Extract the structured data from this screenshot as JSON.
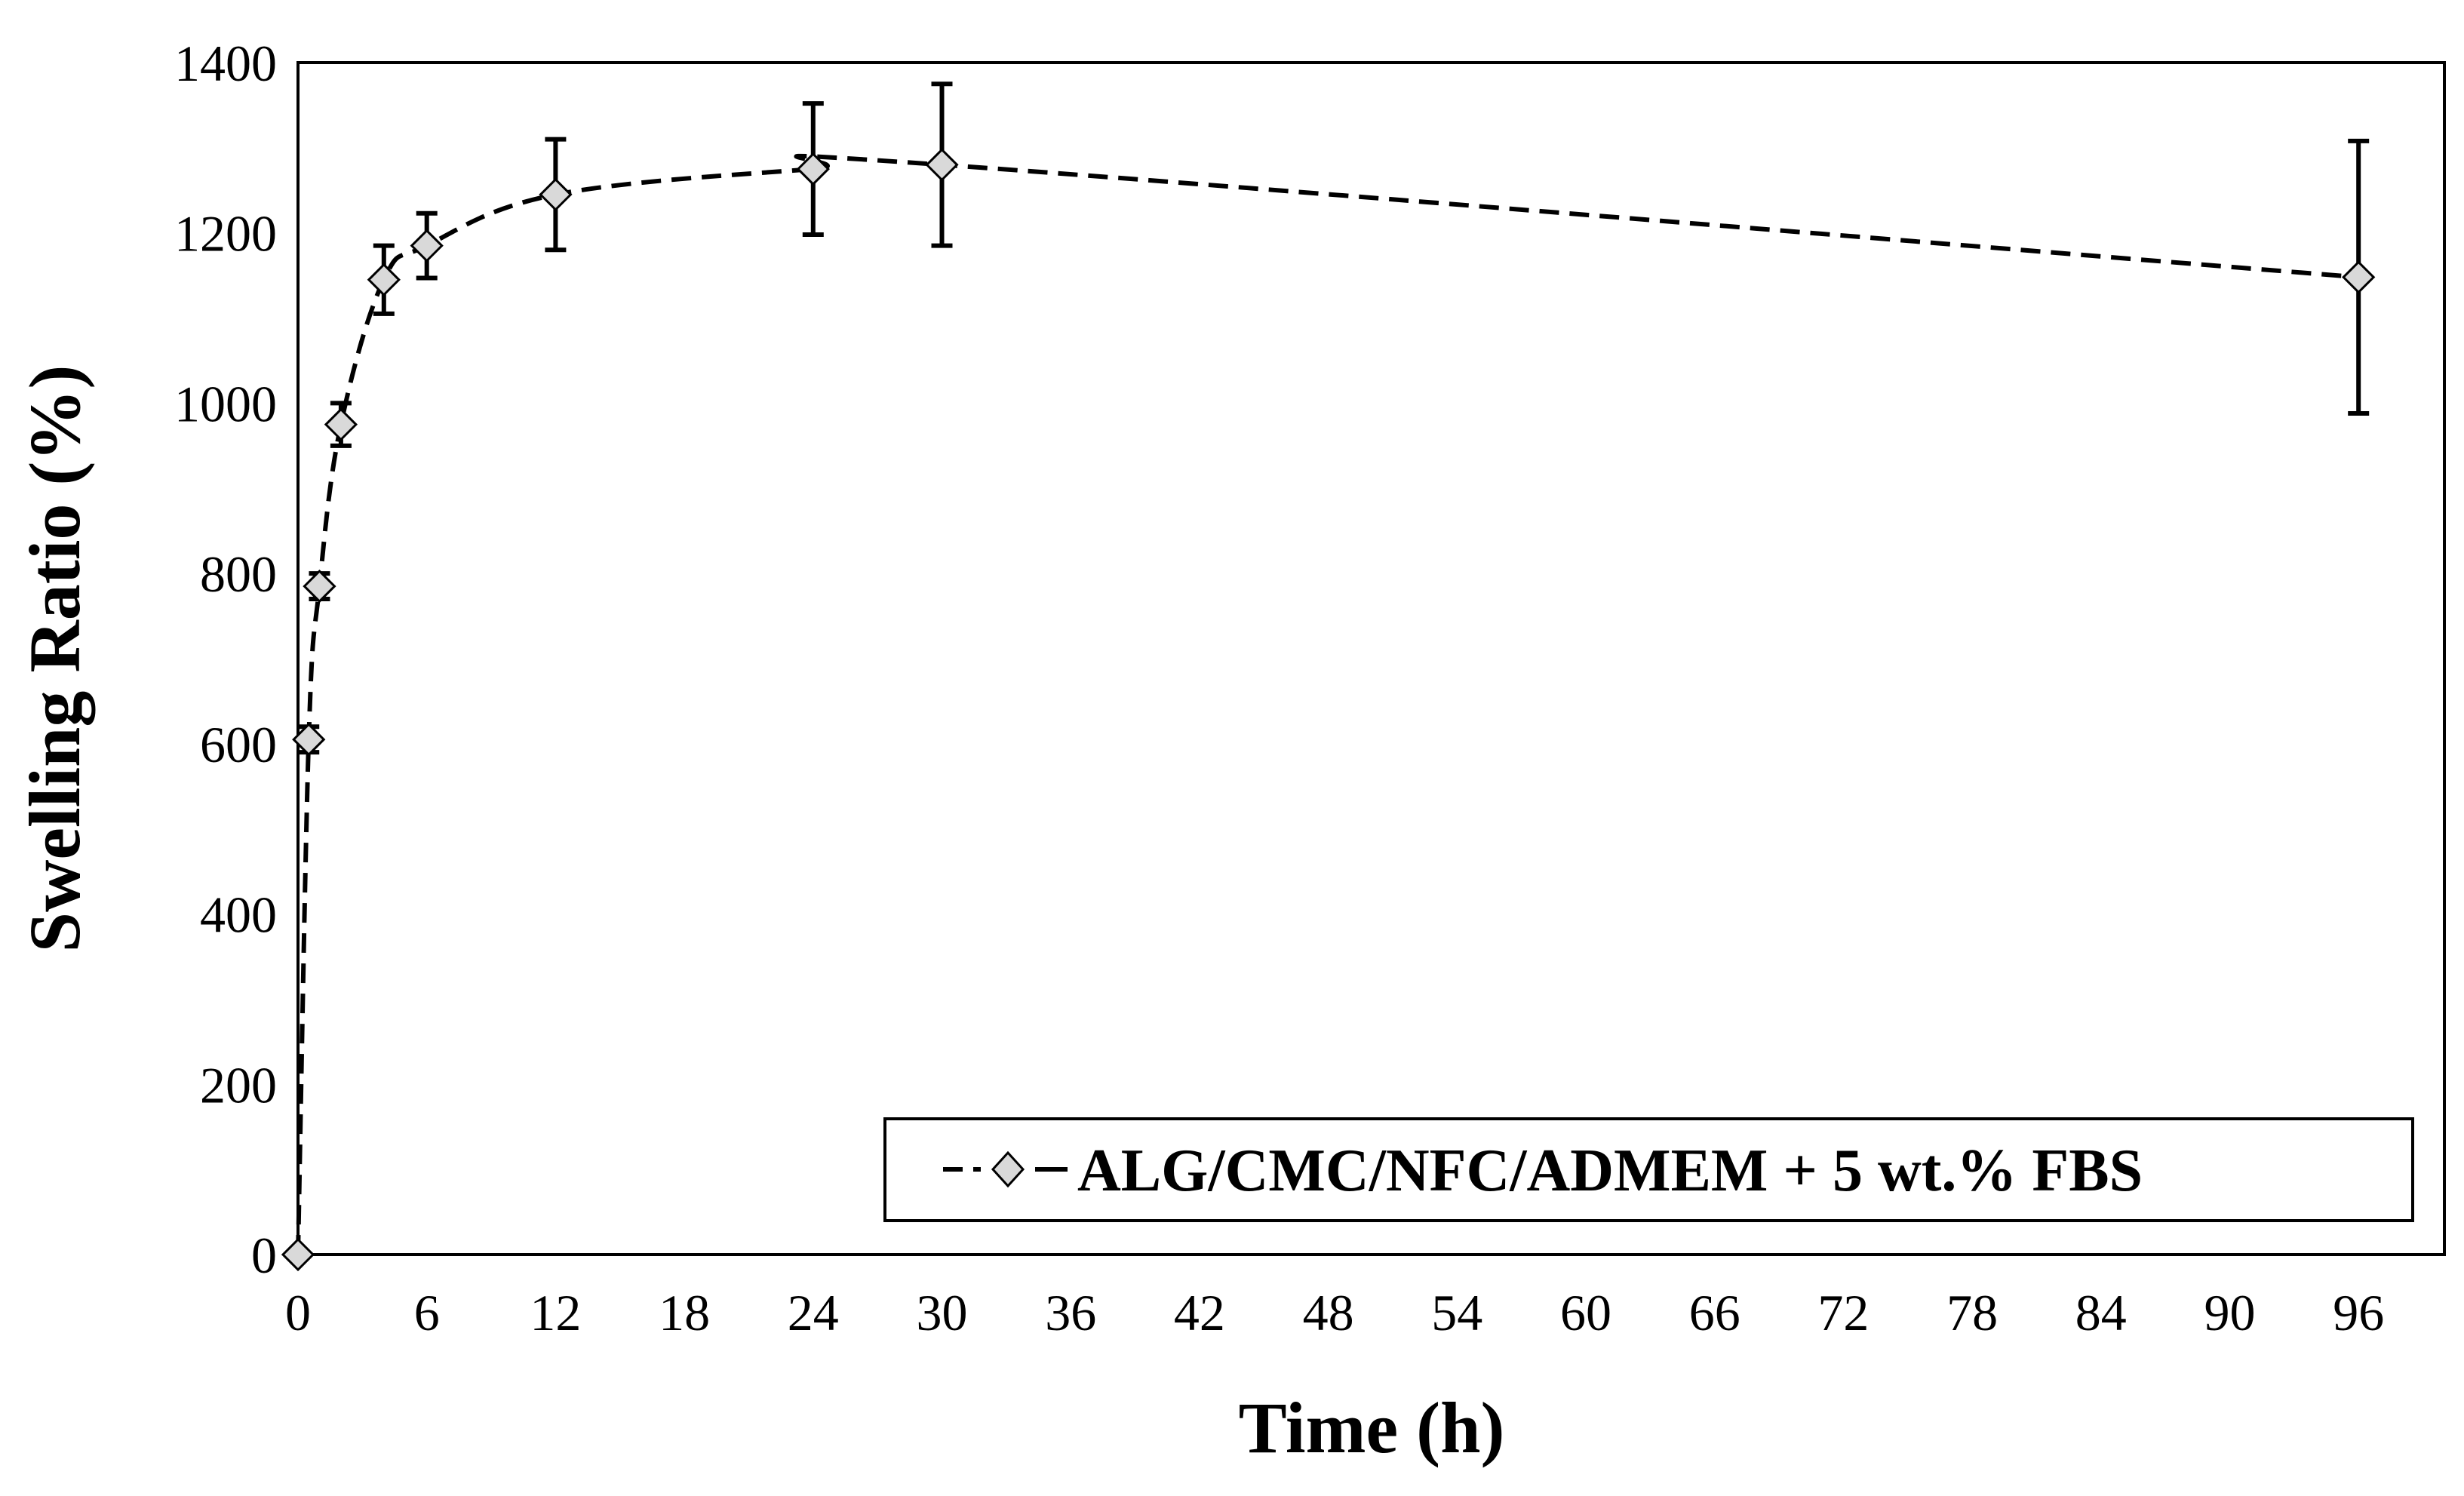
{
  "chart_data": {
    "type": "scatter",
    "title": "",
    "xlabel": "Time (h)",
    "ylabel": "Swelling Ratio (%)",
    "xlim": [
      0,
      100
    ],
    "ylim": [
      0,
      1400
    ],
    "xticks": [
      0,
      6,
      12,
      18,
      24,
      30,
      36,
      42,
      48,
      54,
      60,
      66,
      72,
      78,
      84,
      90,
      96
    ],
    "yticks": [
      0,
      200,
      400,
      600,
      800,
      1000,
      1200,
      1400
    ],
    "grid": false,
    "legend_position": "bottom-right",
    "series": [
      {
        "name": "ALG/CMC/NFC/ADMEM + 5 wt.% FBS",
        "marker": "diamond",
        "line_style": "dashed",
        "x": [
          0,
          0.5,
          1,
          2,
          4,
          6,
          12,
          24,
          30,
          96
        ],
        "y": [
          0,
          605,
          785,
          975,
          1145,
          1185,
          1245,
          1275,
          1280,
          1148
        ],
        "error": [
          0,
          15,
          15,
          25,
          40,
          38,
          65,
          77,
          95,
          160
        ]
      }
    ]
  },
  "colors": {
    "marker_fill": "#d9d9d9",
    "line": "#000000",
    "frame": "#000000"
  }
}
